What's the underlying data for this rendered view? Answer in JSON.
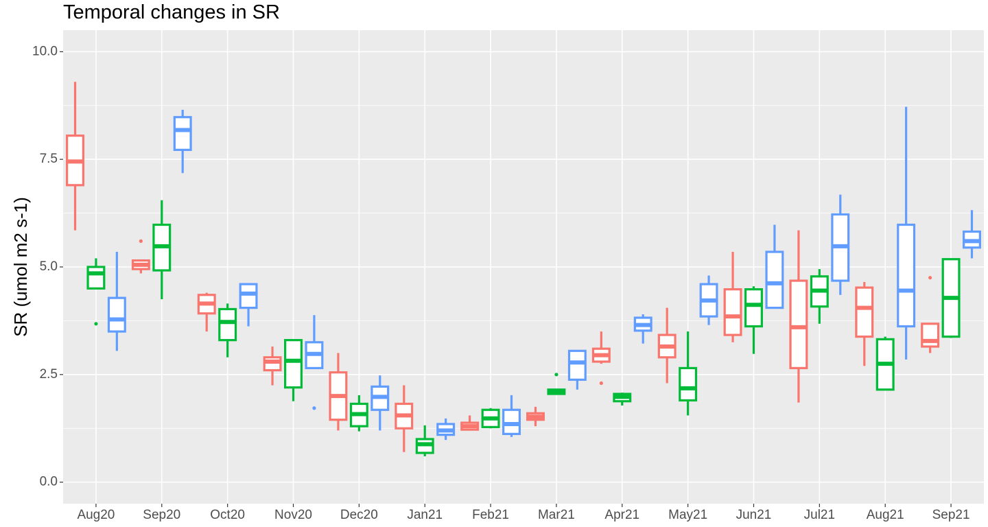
{
  "chart_data": {
    "type": "box",
    "title": "Temporal changes in SR",
    "xlabel": "",
    "ylabel": "SR (umol m2 s-1)",
    "ylim": [
      -0.5,
      10.5
    ],
    "yticks": [
      0.0,
      2.5,
      5.0,
      7.5,
      10.0
    ],
    "ytick_labels": [
      "0.0",
      "2.5",
      "5.0",
      "7.5",
      "10.0"
    ],
    "categories": [
      "Aug20",
      "Sep20",
      "Oct20",
      "Nov20",
      "Dec20",
      "Jan21",
      "Feb21",
      "Mar21",
      "Apr21",
      "May21",
      "Jun21",
      "Jul21",
      "Aug21",
      "Sep21"
    ],
    "grid": true,
    "legend": "none",
    "colors": [
      "#F8766D",
      "#00BA38",
      "#619CFF"
    ],
    "background": "#EBEBEB",
    "series": [
      {
        "color": "#F8766D",
        "boxes": [
          {
            "min": 5.85,
            "q1": 6.9,
            "median": 7.45,
            "q3": 8.05,
            "max": 9.3,
            "outliers": []
          },
          {
            "min": 4.85,
            "q1": 4.95,
            "median": 5.05,
            "q3": 5.15,
            "max": 5.15,
            "outliers": [
              5.6
            ]
          },
          {
            "min": 3.5,
            "q1": 3.92,
            "median": 4.15,
            "q3": 4.35,
            "max": 4.4,
            "outliers": []
          },
          {
            "min": 2.25,
            "q1": 2.6,
            "median": 2.8,
            "q3": 2.9,
            "max": 3.15,
            "outliers": []
          },
          {
            "min": 1.2,
            "q1": 1.45,
            "median": 2.0,
            "q3": 2.55,
            "max": 3.0,
            "outliers": []
          },
          {
            "min": 0.7,
            "q1": 1.25,
            "median": 1.55,
            "q3": 1.82,
            "max": 2.25,
            "outliers": []
          },
          {
            "min": 1.2,
            "q1": 1.22,
            "median": 1.3,
            "q3": 1.38,
            "max": 1.55,
            "outliers": []
          },
          {
            "min": 1.3,
            "q1": 1.45,
            "median": 1.52,
            "q3": 1.6,
            "max": 1.75,
            "outliers": []
          },
          {
            "min": 2.75,
            "q1": 2.8,
            "median": 2.95,
            "q3": 3.1,
            "max": 3.5,
            "outliers": [
              2.3
            ]
          },
          {
            "min": 2.3,
            "q1": 2.9,
            "median": 3.15,
            "q3": 3.42,
            "max": 4.05,
            "outliers": []
          },
          {
            "min": 3.25,
            "q1": 3.42,
            "median": 3.85,
            "q3": 4.48,
            "max": 5.35,
            "outliers": []
          },
          {
            "min": 1.85,
            "q1": 2.65,
            "median": 3.6,
            "q3": 4.68,
            "max": 5.85,
            "outliers": []
          },
          {
            "min": 2.7,
            "q1": 3.38,
            "median": 4.05,
            "q3": 4.52,
            "max": 4.65,
            "outliers": []
          },
          {
            "min": 3.0,
            "q1": 3.15,
            "median": 3.28,
            "q3": 3.68,
            "max": 3.7,
            "outliers": [
              4.75
            ]
          }
        ]
      },
      {
        "color": "#00BA38",
        "boxes": [
          {
            "min": 4.5,
            "q1": 4.5,
            "median": 4.85,
            "q3": 5.0,
            "max": 5.2,
            "outliers": [
              3.68
            ]
          },
          {
            "min": 4.25,
            "q1": 4.92,
            "median": 5.48,
            "q3": 5.98,
            "max": 6.55,
            "outliers": []
          },
          {
            "min": 2.9,
            "q1": 3.3,
            "median": 3.72,
            "q3": 4.02,
            "max": 4.15,
            "outliers": []
          },
          {
            "min": 1.88,
            "q1": 2.2,
            "median": 2.82,
            "q3": 3.3,
            "max": 3.32,
            "outliers": []
          },
          {
            "min": 1.18,
            "q1": 1.3,
            "median": 1.58,
            "q3": 1.82,
            "max": 2.02,
            "outliers": []
          },
          {
            "min": 0.6,
            "q1": 0.68,
            "median": 0.88,
            "q3": 1.0,
            "max": 1.32,
            "outliers": []
          },
          {
            "min": 1.25,
            "q1": 1.28,
            "median": 1.48,
            "q3": 1.68,
            "max": 1.72,
            "outliers": []
          },
          {
            "min": 2.05,
            "q1": 2.05,
            "median": 2.1,
            "q3": 2.15,
            "max": 2.15,
            "outliers": [
              2.5
            ]
          },
          {
            "min": 1.78,
            "q1": 1.88,
            "median": 1.98,
            "q3": 2.05,
            "max": 2.08,
            "outliers": []
          },
          {
            "min": 1.55,
            "q1": 1.9,
            "median": 2.18,
            "q3": 2.65,
            "max": 3.5,
            "outliers": []
          },
          {
            "min": 2.98,
            "q1": 3.62,
            "median": 4.12,
            "q3": 4.48,
            "max": 4.55,
            "outliers": []
          },
          {
            "min": 3.68,
            "q1": 4.08,
            "median": 4.45,
            "q3": 4.78,
            "max": 4.95,
            "outliers": []
          },
          {
            "min": 2.15,
            "q1": 2.15,
            "median": 2.75,
            "q3": 3.32,
            "max": 3.38,
            "outliers": []
          },
          {
            "min": 3.35,
            "q1": 3.38,
            "median": 4.28,
            "q3": 5.18,
            "max": 5.18,
            "outliers": []
          }
        ]
      },
      {
        "color": "#619CFF",
        "boxes": [
          {
            "min": 3.05,
            "q1": 3.5,
            "median": 3.78,
            "q3": 4.28,
            "max": 5.35,
            "outliers": []
          },
          {
            "min": 7.18,
            "q1": 7.72,
            "median": 8.18,
            "q3": 8.48,
            "max": 8.65,
            "outliers": []
          },
          {
            "min": 3.62,
            "q1": 4.05,
            "median": 4.38,
            "q3": 4.6,
            "max": 4.6,
            "outliers": []
          },
          {
            "min": 2.65,
            "q1": 2.65,
            "median": 2.98,
            "q3": 3.25,
            "max": 3.88,
            "outliers": [
              1.72
            ]
          },
          {
            "min": 1.2,
            "q1": 1.68,
            "median": 1.98,
            "q3": 2.22,
            "max": 2.48,
            "outliers": []
          },
          {
            "min": 0.98,
            "q1": 1.1,
            "median": 1.2,
            "q3": 1.35,
            "max": 1.48,
            "outliers": []
          },
          {
            "min": 1.05,
            "q1": 1.12,
            "median": 1.35,
            "q3": 1.68,
            "max": 2.02,
            "outliers": []
          },
          {
            "min": 2.15,
            "q1": 2.38,
            "median": 2.78,
            "q3": 3.05,
            "max": 3.05,
            "outliers": []
          },
          {
            "min": 3.22,
            "q1": 3.52,
            "median": 3.65,
            "q3": 3.82,
            "max": 3.9,
            "outliers": []
          },
          {
            "min": 3.65,
            "q1": 3.85,
            "median": 4.22,
            "q3": 4.6,
            "max": 4.8,
            "outliers": []
          },
          {
            "min": 4.05,
            "q1": 4.05,
            "median": 4.62,
            "q3": 5.35,
            "max": 5.98,
            "outliers": []
          },
          {
            "min": 4.35,
            "q1": 4.68,
            "median": 5.48,
            "q3": 6.22,
            "max": 6.68,
            "outliers": []
          },
          {
            "min": 2.85,
            "q1": 3.62,
            "median": 4.45,
            "q3": 5.98,
            "max": 8.72,
            "outliers": []
          },
          {
            "min": 5.2,
            "q1": 5.45,
            "median": 5.6,
            "q3": 5.82,
            "max": 6.32,
            "outliers": []
          }
        ]
      }
    ]
  }
}
